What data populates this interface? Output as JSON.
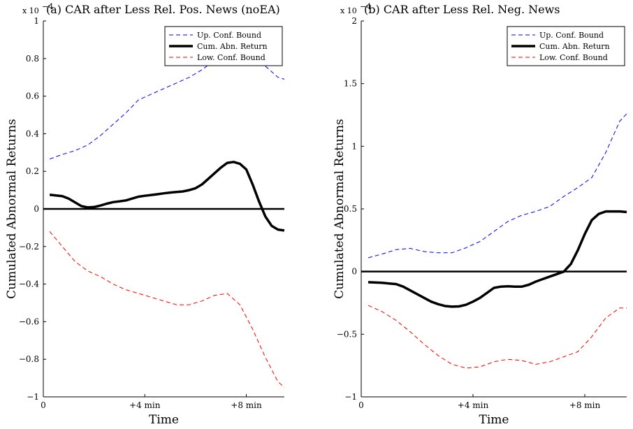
{
  "chart_data": [
    {
      "type": "line",
      "title": "(a) CAR after Less Rel. Pos. News (noEA)",
      "multiplier_label": "x 10",
      "multiplier_exponent": "−4",
      "xlabel": "Time",
      "ylabel": "Cumulated Abnormal Returns",
      "xlim": [
        0,
        9.5
      ],
      "ylim": [
        -1,
        1
      ],
      "x_ticks": [
        {
          "value": 0,
          "label": "0"
        },
        {
          "value": 4,
          "label": "+4 min"
        },
        {
          "value": 8,
          "label": "+8 min"
        }
      ],
      "y_ticks": [
        {
          "value": -1,
          "label": "−1"
        },
        {
          "value": -0.8,
          "label": "−0.8"
        },
        {
          "value": -0.6,
          "label": "−0.6"
        },
        {
          "value": -0.4,
          "label": "−0.4"
        },
        {
          "value": -0.2,
          "label": "−0.2"
        },
        {
          "value": 0,
          "label": "0"
        },
        {
          "value": 0.2,
          "label": "0.2"
        },
        {
          "value": 0.4,
          "label": "0.4"
        },
        {
          "value": 0.6,
          "label": "0.6"
        },
        {
          "value": 0.8,
          "label": "0.8"
        },
        {
          "value": 1,
          "label": "1"
        }
      ],
      "legend_position": "top-right",
      "zero_line": true,
      "series": [
        {
          "name": "Up. Conf. Bound",
          "color": "#0000ff",
          "style": "dashed",
          "x": [
            0.25,
            0.75,
            1.25,
            1.75,
            2.25,
            2.75,
            3.25,
            3.75,
            4.25,
            4.75,
            5.25,
            5.75,
            6.25,
            6.75,
            7.25,
            7.75,
            8.25,
            8.75,
            9.25,
            9.5
          ],
          "y": [
            0.265,
            0.29,
            0.31,
            0.34,
            0.39,
            0.45,
            0.51,
            0.58,
            0.61,
            0.64,
            0.67,
            0.7,
            0.74,
            0.79,
            0.82,
            0.84,
            0.81,
            0.76,
            0.7,
            0.69
          ]
        },
        {
          "name": "Cum. Abn. Return",
          "color": "#000000",
          "style": "solid",
          "x": [
            0.25,
            0.75,
            1.0,
            1.25,
            1.5,
            1.75,
            2.0,
            2.25,
            2.5,
            2.75,
            3.0,
            3.25,
            3.5,
            3.75,
            4.0,
            4.25,
            4.5,
            4.75,
            5.0,
            5.25,
            5.5,
            5.75,
            6.0,
            6.25,
            6.5,
            6.75,
            7.0,
            7.25,
            7.5,
            7.75,
            8.0,
            8.25,
            8.5,
            8.75,
            9.0,
            9.25,
            9.5
          ],
          "y": [
            0.075,
            0.068,
            0.055,
            0.035,
            0.015,
            0.008,
            0.01,
            0.018,
            0.028,
            0.036,
            0.04,
            0.045,
            0.055,
            0.065,
            0.07,
            0.074,
            0.078,
            0.083,
            0.087,
            0.09,
            0.093,
            0.1,
            0.11,
            0.13,
            0.16,
            0.19,
            0.22,
            0.245,
            0.25,
            0.24,
            0.21,
            0.13,
            0.04,
            -0.04,
            -0.09,
            -0.11,
            -0.115
          ]
        },
        {
          "name": "Low. Conf. Bound",
          "color": "#ff0000",
          "style": "dashed",
          "x": [
            0.25,
            0.75,
            1.25,
            1.75,
            2.25,
            2.75,
            3.25,
            3.75,
            4.25,
            4.75,
            5.25,
            5.75,
            6.25,
            6.75,
            7.25,
            7.75,
            8.25,
            8.75,
            9.25,
            9.5
          ],
          "y": [
            -0.12,
            -0.2,
            -0.28,
            -0.33,
            -0.36,
            -0.4,
            -0.43,
            -0.45,
            -0.47,
            -0.49,
            -0.51,
            -0.51,
            -0.49,
            -0.46,
            -0.45,
            -0.51,
            -0.64,
            -0.79,
            -0.92,
            -0.95
          ]
        }
      ]
    },
    {
      "type": "line",
      "title": "(b) CAR after Less Rel. Neg. News",
      "multiplier_label": "x 10",
      "multiplier_exponent": "−4",
      "xlabel": "Time",
      "ylabel": "Cumulated Abnormal Returns",
      "xlim": [
        0,
        9.5
      ],
      "ylim": [
        -1,
        2
      ],
      "x_ticks": [
        {
          "value": 0,
          "label": "0"
        },
        {
          "value": 4,
          "label": "+4 min"
        },
        {
          "value": 8,
          "label": "+8 min"
        }
      ],
      "y_ticks": [
        {
          "value": -1,
          "label": "−1"
        },
        {
          "value": -0.5,
          "label": "−0.5"
        },
        {
          "value": 0,
          "label": "0"
        },
        {
          "value": 0.5,
          "label": "0.5"
        },
        {
          "value": 1,
          "label": "1"
        },
        {
          "value": 1.5,
          "label": "1.5"
        },
        {
          "value": 2,
          "label": "2"
        }
      ],
      "legend_position": "top-right",
      "zero_line": true,
      "series": [
        {
          "name": "Up. Conf. Bound",
          "color": "#0000ff",
          "style": "dashed",
          "x": [
            0.25,
            0.75,
            1.25,
            1.75,
            2.25,
            2.75,
            3.25,
            3.75,
            4.25,
            4.75,
            5.25,
            5.75,
            6.25,
            6.75,
            7.25,
            7.75,
            8.25,
            8.75,
            9.25,
            9.5
          ],
          "y": [
            0.11,
            0.14,
            0.175,
            0.185,
            0.16,
            0.15,
            0.15,
            0.19,
            0.24,
            0.32,
            0.4,
            0.45,
            0.48,
            0.52,
            0.6,
            0.67,
            0.75,
            0.95,
            1.2,
            1.26
          ]
        },
        {
          "name": "Cum. Abn. Return",
          "color": "#000000",
          "style": "solid",
          "x": [
            0.25,
            0.75,
            1.0,
            1.25,
            1.5,
            1.75,
            2.0,
            2.25,
            2.5,
            2.75,
            3.0,
            3.25,
            3.5,
            3.75,
            4.0,
            4.25,
            4.5,
            4.75,
            5.0,
            5.25,
            5.5,
            5.75,
            6.0,
            6.25,
            6.5,
            6.75,
            7.0,
            7.25,
            7.5,
            7.75,
            8.0,
            8.25,
            8.5,
            8.75,
            9.0,
            9.25,
            9.5
          ],
          "y": [
            -0.085,
            -0.09,
            -0.095,
            -0.1,
            -0.12,
            -0.15,
            -0.18,
            -0.21,
            -0.24,
            -0.26,
            -0.275,
            -0.28,
            -0.278,
            -0.265,
            -0.24,
            -0.21,
            -0.17,
            -0.13,
            -0.12,
            -0.118,
            -0.12,
            -0.12,
            -0.105,
            -0.08,
            -0.06,
            -0.04,
            -0.02,
            0.0,
            0.06,
            0.17,
            0.3,
            0.41,
            0.46,
            0.48,
            0.48,
            0.48,
            0.475
          ]
        },
        {
          "name": "Low. Conf. Bound",
          "color": "#ff0000",
          "style": "dashed",
          "x": [
            0.25,
            0.75,
            1.25,
            1.75,
            2.25,
            2.75,
            3.25,
            3.75,
            4.25,
            4.75,
            5.25,
            5.75,
            6.25,
            6.75,
            7.25,
            7.75,
            8.25,
            8.75,
            9.25,
            9.5
          ],
          "y": [
            -0.27,
            -0.32,
            -0.39,
            -0.48,
            -0.58,
            -0.67,
            -0.74,
            -0.77,
            -0.76,
            -0.72,
            -0.7,
            -0.71,
            -0.74,
            -0.72,
            -0.68,
            -0.64,
            -0.52,
            -0.37,
            -0.29,
            -0.29
          ]
        }
      ]
    }
  ]
}
